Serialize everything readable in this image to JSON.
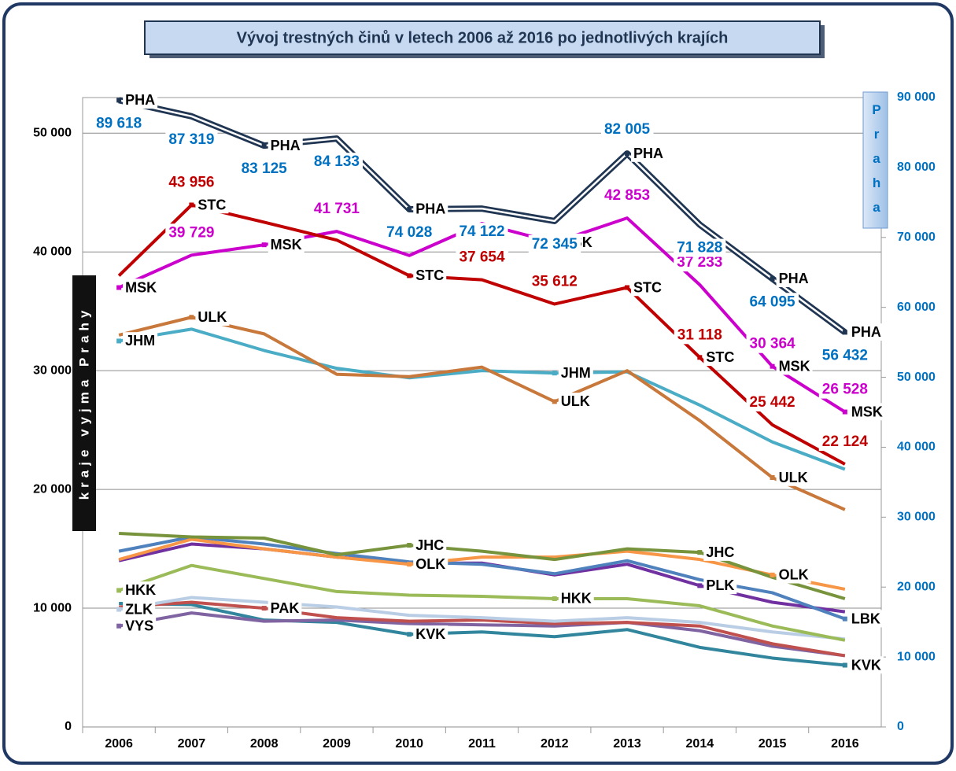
{
  "chart_data": {
    "type": "line",
    "title": "Vývoj trestných činů v letech 2006 až 2016 po jednotlivých krajích",
    "y_label": "kraje vyjma Prahy",
    "y2_label": "Praha",
    "categories": [
      "2006",
      "2007",
      "2008",
      "2009",
      "2010",
      "2011",
      "2012",
      "2013",
      "2014",
      "2015",
      "2016"
    ],
    "ylim": [
      0,
      53000
    ],
    "yticks": [
      0,
      {
        "value": 10000,
        "label": "10 000"
      },
      {
        "value": 20000,
        "label": "20 000"
      },
      {
        "value": 30000,
        "label": "30 000"
      },
      {
        "value": 40000,
        "label": "40 000"
      },
      {
        "value": 50000,
        "label": "50 000"
      }
    ],
    "y2lim": [
      0,
      90000
    ],
    "y2ticks": [
      0,
      {
        "value": 10000,
        "label": "10 000"
      },
      {
        "value": 20000,
        "label": "20 000"
      },
      {
        "value": 30000,
        "label": "30 000"
      },
      {
        "value": 40000,
        "label": "40 000"
      },
      {
        "value": 50000,
        "label": "50 000"
      },
      {
        "value": 60000,
        "label": "60 000"
      },
      {
        "value": 70000,
        "label": "70 000"
      },
      {
        "value": 80000,
        "label": "80 000"
      },
      {
        "value": 90000,
        "label": "90 000"
      }
    ],
    "grid": true,
    "series": [
      {
        "name": "KVK",
        "color": "#31859c",
        "values": [
          10400,
          10300,
          9000,
          8800,
          7800,
          8000,
          7600,
          8200,
          6700,
          5800,
          5200
        ]
      },
      {
        "name": "VYS",
        "color": "#8064a2",
        "values": [
          8500,
          9600,
          8900,
          9000,
          8700,
          8600,
          8500,
          8800,
          8100,
          6800,
          6000
        ]
      },
      {
        "name": "PAK",
        "color": "#c0504d",
        "values": [
          10100,
          10500,
          10000,
          9200,
          8900,
          9000,
          8700,
          8800,
          8500,
          7000,
          6000
        ]
      },
      {
        "name": "ZLK",
        "color": "#b9cde5",
        "values": [
          9900,
          10900,
          10500,
          10100,
          9400,
          9200,
          8900,
          9200,
          8800,
          8000,
          7400
        ]
      },
      {
        "name": "HKK",
        "color": "#9bbb59",
        "values": [
          11500,
          13600,
          12500,
          11400,
          11100,
          11000,
          10800,
          10800,
          10200,
          8500,
          7300
        ]
      },
      {
        "name": "PLK",
        "color": "#7030a0",
        "values": [
          14000,
          15400,
          15000,
          14300,
          13800,
          13800,
          12800,
          13700,
          11900,
          10500,
          9700
        ]
      },
      {
        "name": "LBK",
        "color": "#4f81bd",
        "values": [
          14800,
          16000,
          15400,
          14600,
          13900,
          13700,
          12900,
          14000,
          12400,
          11300,
          9100
        ]
      },
      {
        "name": "OLK",
        "color": "#f79646",
        "values": [
          14100,
          15800,
          15000,
          14300,
          13700,
          14300,
          14300,
          14800,
          14100,
          12800,
          11600
        ]
      },
      {
        "name": "JHC",
        "color": "#77933c",
        "values": [
          16300,
          16000,
          15900,
          14500,
          15300,
          14800,
          14100,
          15000,
          14700,
          12600,
          10800
        ]
      },
      {
        "name": "JHM",
        "color": "#4bacc6",
        "values": [
          32500,
          33500,
          31700,
          30200,
          29400,
          30000,
          29800,
          29900,
          27100,
          24000,
          21700
        ]
      },
      {
        "name": "ULK",
        "color": "#c8783a",
        "values": [
          33000,
          34500,
          33100,
          29700,
          29500,
          30300,
          27400,
          30000,
          25800,
          21000,
          18300
        ]
      },
      {
        "name": "MSK",
        "color": "#cc00cc",
        "values": [
          37000,
          39729,
          40600,
          41731,
          39700,
          42400,
          40800,
          42853,
          37233,
          30364,
          26528
        ],
        "value_labels": [
          null,
          "39 729",
          null,
          "41 731",
          null,
          null,
          null,
          "42 853",
          "37 233",
          "30 364",
          "26 528"
        ]
      },
      {
        "name": "STC",
        "color": "#c00000",
        "values": [
          38000,
          43956,
          42500,
          41000,
          38000,
          37654,
          35612,
          37000,
          31118,
          25442,
          22124
        ],
        "value_labels": [
          null,
          "43 956",
          null,
          null,
          null,
          "37 654",
          "35 612",
          null,
          "31 118",
          "25 442",
          "22 124"
        ]
      },
      {
        "name": "PHA",
        "color": "#1f3552",
        "axis": "y2",
        "values": [
          89618,
          87319,
          83125,
          84133,
          74028,
          74122,
          72345,
          82005,
          71828,
          64095,
          56432
        ],
        "value_labels": [
          "89 618",
          "87 319",
          "83 125",
          "84 133",
          "74 028",
          "74 122",
          "72 345",
          "82 005",
          "71 828",
          "64 095",
          "56 432"
        ]
      }
    ]
  }
}
